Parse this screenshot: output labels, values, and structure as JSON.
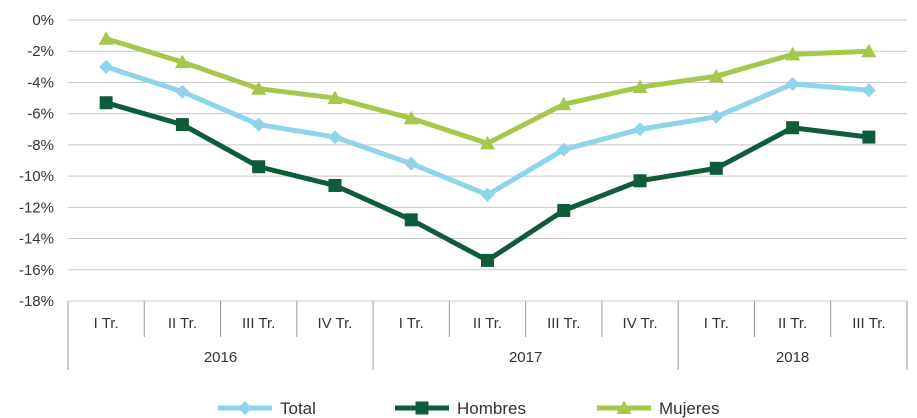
{
  "chart_data": {
    "type": "line",
    "title": "",
    "xlabel": "",
    "ylabel": "",
    "ylim": [
      -18,
      0
    ],
    "yticks": [
      0,
      -2,
      -4,
      -6,
      -8,
      -10,
      -12,
      -14,
      -16,
      -18
    ],
    "ytick_labels": [
      "0%",
      "-2%",
      "-4%",
      "-6%",
      "-8%",
      "-10%",
      "-12%",
      "-14%",
      "-16%",
      "-18%"
    ],
    "grid": true,
    "legend_position": "bottom",
    "categories": [
      "I Tr.",
      "II Tr.",
      "III Tr.",
      "IV Tr.",
      "I Tr.",
      "II Tr.",
      "III Tr.",
      "IV Tr.",
      "I Tr.",
      "II Tr.",
      "III Tr."
    ],
    "groups": [
      {
        "label": "2016",
        "start": 0,
        "count": 4
      },
      {
        "label": "2017",
        "start": 4,
        "count": 4
      },
      {
        "label": "2018",
        "start": 8,
        "count": 3
      }
    ],
    "series": [
      {
        "name": "Total",
        "color": "#8fd3ec",
        "marker": "diamond",
        "values": [
          -3.0,
          -4.6,
          -6.7,
          -7.5,
          -9.2,
          -11.2,
          -8.3,
          -7.0,
          -6.2,
          -4.1,
          -4.5
        ]
      },
      {
        "name": "Hombres",
        "color": "#0f5c3a",
        "marker": "square",
        "values": [
          -5.3,
          -6.7,
          -9.4,
          -10.6,
          -12.8,
          -15.4,
          -12.2,
          -10.3,
          -9.5,
          -6.9,
          -7.5
        ]
      },
      {
        "name": "Mujeres",
        "color": "#a6c84a",
        "marker": "triangle",
        "values": [
          -1.2,
          -2.7,
          -4.4,
          -5.0,
          -6.3,
          -7.9,
          -5.4,
          -4.3,
          -3.6,
          -2.2,
          -2.0
        ]
      }
    ]
  }
}
